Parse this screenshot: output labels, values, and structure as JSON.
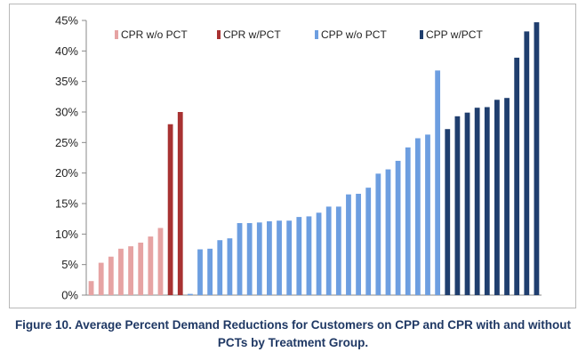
{
  "figure": {
    "caption_line1": "Figure 10. Average Percent Demand Reductions for Customers on CPP and CPR with and without",
    "caption_line2": "PCTs by Treatment Group."
  },
  "chart_data": {
    "type": "bar",
    "title": "",
    "xlabel": "",
    "ylabel": "",
    "ylim": [
      0,
      45
    ],
    "y_ticks": [
      "0%",
      "5%",
      "10%",
      "15%",
      "20%",
      "25%",
      "30%",
      "35%",
      "40%",
      "45%"
    ],
    "y_tick_values": [
      0,
      5,
      10,
      15,
      20,
      25,
      30,
      35,
      40,
      45
    ],
    "grid": false,
    "legend_position": "top",
    "series": [
      {
        "name": "CPR w/o PCT",
        "color": "#e6a3a3",
        "values": [
          2.3,
          5.3,
          6.3,
          7.6,
          8.0,
          8.6,
          9.6,
          11.0
        ]
      },
      {
        "name": "CPR w/PCT",
        "color": "#a83232",
        "values": [
          28.0,
          30.0
        ]
      },
      {
        "name": "CPP w/o PCT",
        "color": "#6d9ee0",
        "values": [
          0.2,
          7.5,
          7.6,
          9.0,
          9.3,
          11.8,
          11.8,
          11.9,
          12.1,
          12.2,
          12.2,
          12.8,
          12.9,
          13.5,
          14.5,
          14.5,
          16.5,
          16.6,
          17.6,
          19.9,
          20.6,
          22.0,
          24.2,
          25.7,
          26.3,
          36.8
        ]
      },
      {
        "name": "CPP w/PCT",
        "color": "#1f3e6e",
        "values": [
          27.2,
          29.3,
          29.9,
          30.7,
          30.8,
          32.0,
          32.3,
          38.9,
          43.2,
          44.7
        ]
      }
    ]
  }
}
